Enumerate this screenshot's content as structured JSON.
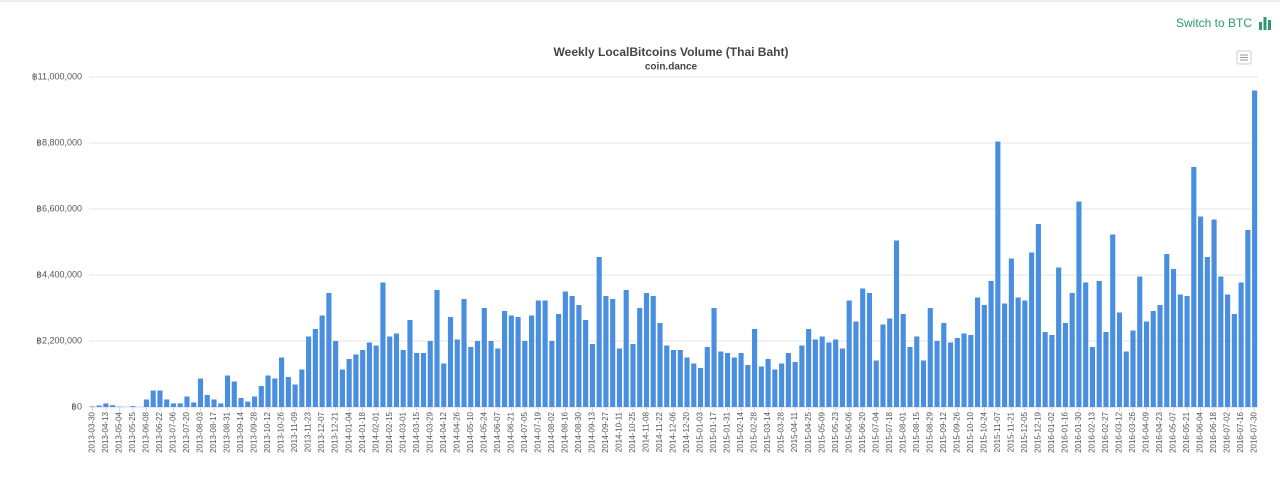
{
  "button": "Switch to BTC",
  "chart_data": {
    "type": "bar",
    "title": "Weekly LocalBitcoins Volume (Thai Baht)",
    "subtitle": "coin.dance",
    "color": "#4a8fdf",
    "grid": true,
    "ylim": [
      0,
      11000000
    ],
    "yticks": [
      {
        "value": 0,
        "label": "฿0"
      },
      {
        "value": 2200000,
        "label": "฿2,200,000"
      },
      {
        "value": 4400000,
        "label": "฿4,400,000"
      },
      {
        "value": 6600000,
        "label": "฿6,600,000"
      },
      {
        "value": 8800000,
        "label": "฿8,800,000"
      },
      {
        "value": 11000000,
        "label": "฿11,000,000"
      }
    ],
    "categories": [
      "2013-03-30",
      null,
      "2013-04-13",
      null,
      "2013-05-04",
      null,
      "2013-05-25",
      null,
      "2013-06-08",
      null,
      "2013-06-22",
      null,
      "2013-07-06",
      null,
      "2013-07-20",
      null,
      "2013-08-03",
      null,
      "2013-08-17",
      null,
      "2013-08-31",
      null,
      "2013-09-14",
      null,
      "2013-09-28",
      null,
      "2013-10-12",
      null,
      "2013-10-26",
      null,
      "2013-11-09",
      null,
      "2013-11-23",
      null,
      "2013-12-07",
      null,
      "2013-12-21",
      null,
      "2014-01-04",
      null,
      "2014-01-18",
      null,
      "2014-02-01",
      null,
      "2014-02-15",
      null,
      "2014-03-01",
      null,
      "2014-03-15",
      null,
      "2014-03-29",
      null,
      "2014-04-12",
      null,
      "2014-04-26",
      null,
      "2014-05-10",
      null,
      "2014-05-24",
      null,
      "2014-06-07",
      null,
      "2014-06-21",
      null,
      "2014-07-05",
      null,
      "2014-07-19",
      null,
      "2014-08-02",
      null,
      "2014-08-16",
      null,
      "2014-08-30",
      null,
      "2014-09-13",
      null,
      "2014-09-27",
      null,
      "2014-10-11",
      null,
      "2014-10-25",
      null,
      "2014-11-08",
      null,
      "2014-11-22",
      null,
      "2014-12-06",
      null,
      "2014-12-20",
      null,
      "2015-01-03",
      null,
      "2015-01-17",
      null,
      "2015-01-31",
      null,
      "2015-02-14",
      null,
      "2015-02-28",
      null,
      "2015-03-14",
      null,
      "2015-03-28",
      null,
      "2015-04-11",
      null,
      "2015-04-25",
      null,
      "2015-05-09",
      null,
      "2015-05-23",
      null,
      "2015-06-06",
      null,
      "2015-06-20",
      null,
      "2015-07-04",
      null,
      "2015-07-18",
      null,
      "2015-08-01",
      null,
      "2015-08-15",
      null,
      "2015-08-29",
      null,
      "2015-09-12",
      null,
      "2015-09-26",
      null,
      "2015-10-10",
      null,
      "2015-10-24",
      null,
      "2015-11-07",
      null,
      "2015-11-21",
      null,
      "2015-12-05",
      null,
      "2015-12-19",
      null,
      "2016-01-02",
      null,
      "2016-01-16",
      null,
      "2016-01-30",
      null,
      "2016-02-13",
      null,
      "2016-02-27",
      null,
      "2016-03-12",
      null,
      "2016-03-26",
      null,
      "2016-04-09",
      null,
      "2016-04-23",
      null,
      "2016-05-07",
      null,
      "2016-05-21",
      null,
      "2016-06-04",
      null,
      "2016-06-18",
      null,
      "2016-07-02",
      null,
      "2016-07-16",
      null,
      "2016-07-30"
    ],
    "values": [
      20000,
      50000,
      120000,
      60000,
      10000,
      0,
      30000,
      0,
      250000,
      550000,
      550000,
      250000,
      120000,
      120000,
      350000,
      150000,
      950000,
      400000,
      250000,
      120000,
      1050000,
      850000,
      300000,
      180000,
      350000,
      700000,
      1050000,
      950000,
      1650000,
      1000000,
      750000,
      1250000,
      2350000,
      2600000,
      3050000,
      3800000,
      2200000,
      1250000,
      1600000,
      1750000,
      1900000,
      2150000,
      2050000,
      4150000,
      2350000,
      2450000,
      1900000,
      2900000,
      1800000,
      1800000,
      2200000,
      3900000,
      1450000,
      3000000,
      2250000,
      3600000,
      2000000,
      2200000,
      3300000,
      2200000,
      1950000,
      3200000,
      3050000,
      3000000,
      2200000,
      3050000,
      3550000,
      3550000,
      2200000,
      3100000,
      3850000,
      3700000,
      3400000,
      2900000,
      2100000,
      5000000,
      3700000,
      3600000,
      1950000,
      3900000,
      2100000,
      3300000,
      3800000,
      3700000,
      2800000,
      2050000,
      1900000,
      1900000,
      1650000,
      1450000,
      1300000,
      2000000,
      3300000,
      1850000,
      1800000,
      1650000,
      1800000,
      1400000,
      2600000,
      1350000,
      1600000,
      1250000,
      1450000,
      1800000,
      1500000,
      2050000,
      2600000,
      2250000,
      2350000,
      2150000,
      2250000,
      1950000,
      3550000,
      2850000,
      3950000,
      3800000,
      1550000,
      2750000,
      2950000,
      5550000,
      3100000,
      2000000,
      2350000,
      1550000,
      3300000,
      2200000,
      2800000,
      2150000,
      2300000,
      2450000,
      2400000,
      3650000,
      3400000,
      4200000,
      8850000,
      3450000,
      4950000,
      3650000,
      3550000,
      5150000,
      6100000,
      2500000,
      2400000,
      4650000,
      2800000,
      3800000,
      6850000,
      4150000,
      2000000,
      4200000,
      2500000,
      5750000,
      3150000,
      1850000,
      2550000,
      4350000,
      2850000,
      3200000,
      3400000,
      5100000,
      4600000,
      3750000,
      3700000,
      8000000,
      6350000,
      5000000,
      6250000,
      4350000,
      3750000,
      3100000,
      4150000,
      5900000,
      10550000
    ]
  }
}
